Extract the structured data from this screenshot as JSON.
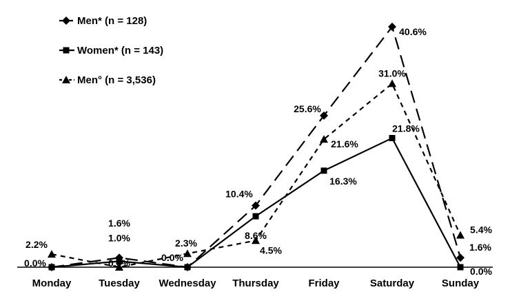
{
  "chart_data": {
    "type": "line",
    "title": "",
    "xlabel": "",
    "ylabel": "",
    "categories": [
      "Monday",
      "Tuesday",
      "Wednesday",
      "Thursday",
      "Friday",
      "Saturday",
      "Sunday"
    ],
    "ylim": [
      0,
      45
    ],
    "grid": false,
    "legend_position": "top-left",
    "series": [
      {
        "name": "Men* (n = 128)",
        "marker": "diamond",
        "dash": "long-dash",
        "color": "#000000",
        "values": [
          0.0,
          1.6,
          0.0,
          10.4,
          25.6,
          40.6,
          1.6
        ],
        "labels": [
          "",
          "1.6%",
          "",
          "10.4%",
          "25.6%",
          "40.6%",
          "1.6%"
        ]
      },
      {
        "name": "Women* (n = 143)",
        "marker": "square",
        "dash": "solid",
        "color": "#000000",
        "values": [
          0.0,
          1.0,
          0.0,
          8.6,
          16.3,
          21.8,
          0.0
        ],
        "labels": [
          "0.0%",
          "1.0%",
          "0.0%",
          "8.6%",
          "16.3%",
          "21.8%",
          "0.0%"
        ]
      },
      {
        "name": "Men° (n = 3,536)",
        "marker": "triangle",
        "dash": "short-dash",
        "color": "#000000",
        "values": [
          2.2,
          0.0,
          2.3,
          4.5,
          21.6,
          31.0,
          5.4
        ],
        "labels": [
          "2.2%",
          "0.0%",
          "2.3%",
          "4.5%",
          "21.6%",
          "31.0%",
          "5.4%"
        ]
      }
    ]
  }
}
